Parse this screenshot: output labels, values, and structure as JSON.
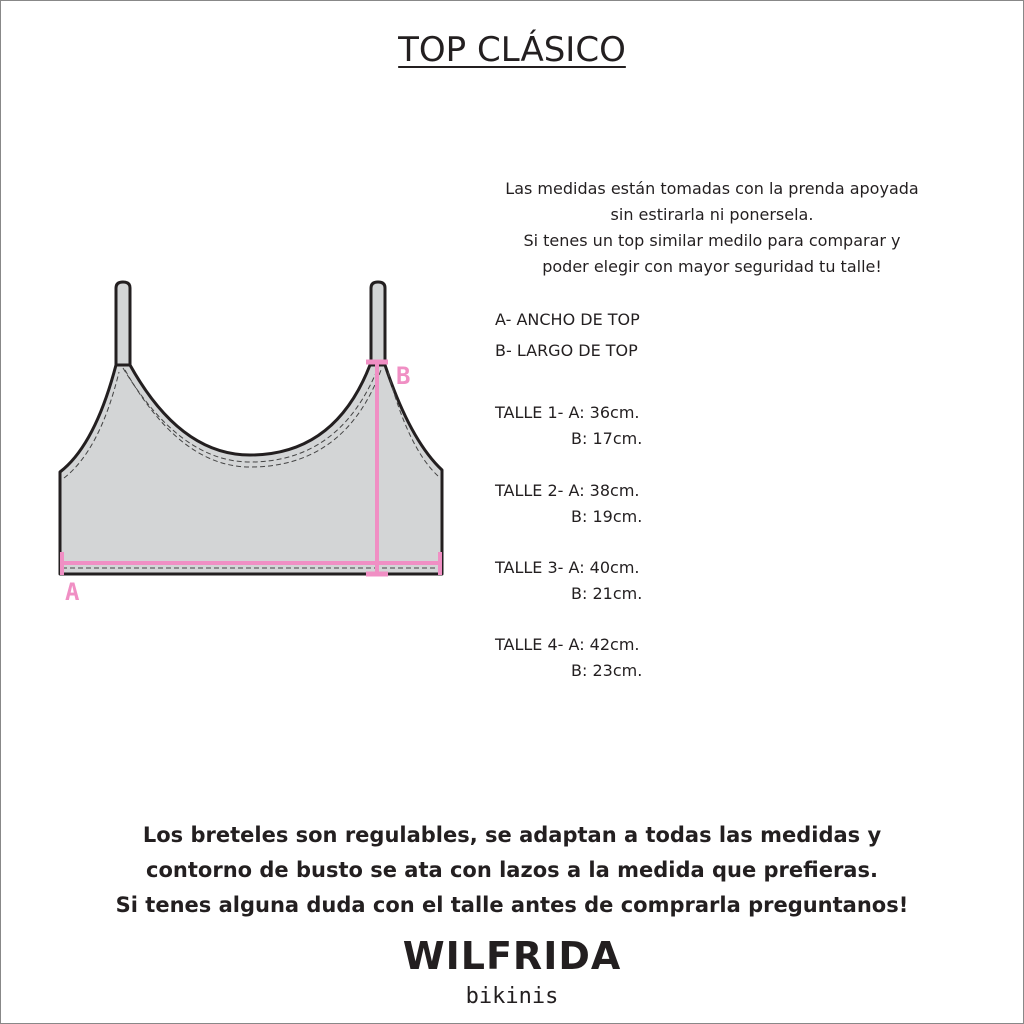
{
  "title": "TOP CLÁSICO",
  "intro": [
    "Las medidas están tomadas con la prenda apoyada",
    "sin estirarla ni ponersela.",
    "Si tenes un top similar medilo para comparar y",
    "poder elegir con mayor seguridad tu talle!"
  ],
  "legend": {
    "a": "A- ANCHO DE TOP",
    "b": "B- LARGO DE TOP"
  },
  "diagram": {
    "label_a": "A",
    "label_b": "B",
    "garment_color": "#d3d5d6",
    "measure_color": "#f08fc4"
  },
  "sizes": [
    {
      "a": "TALLE 1- A: 36cm.",
      "b": "B: 17cm."
    },
    {
      "a": "TALLE 2- A: 38cm.",
      "b": "B: 19cm."
    },
    {
      "a": "TALLE 3- A: 40cm.",
      "b": "B: 21cm."
    },
    {
      "a": "TALLE 4- A: 42cm.",
      "b": "B: 23cm."
    }
  ],
  "footer": [
    "Los breteles son regulables, se adaptan a todas las medidas y",
    "contorno de busto se ata con lazos a la medida que prefieras.",
    "Si tenes alguna duda con el talle antes de comprarla preguntanos!"
  ],
  "brand": {
    "name": "WILFRIDA",
    "sub": "bikinis"
  }
}
